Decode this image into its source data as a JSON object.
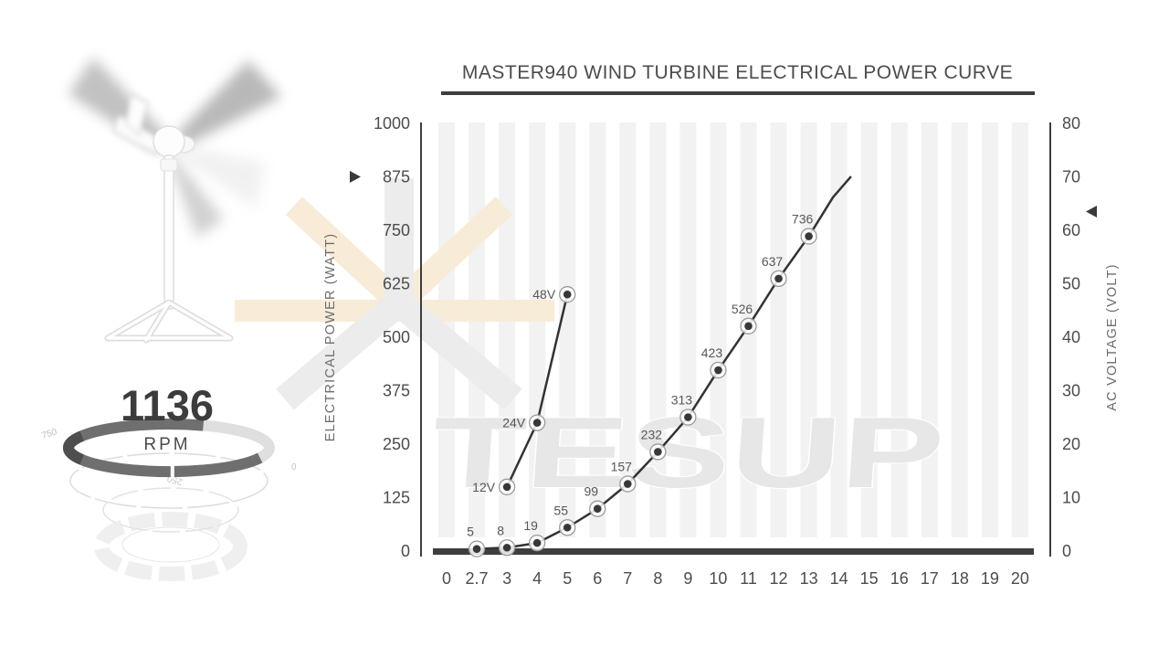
{
  "title": "MASTER940 WIND TURBINE ELECTRICAL POWER CURVE",
  "watermark": {
    "text": "TESUP"
  },
  "gauge": {
    "value": "1136",
    "unit": "RPM",
    "scale_labels": [
      "750",
      "250",
      "0"
    ]
  },
  "colors": {
    "axis": "#3e3e3e",
    "tick_text": "#4c4c4c",
    "axis_title_text": "#6d6d6d",
    "line": "#333333",
    "marker_dot": "#383838",
    "marker_ring": "#9a9a9a",
    "point_label": "#575757",
    "stripe": "#f2f2f2",
    "pointer": "#3a3a3a"
  },
  "chart_data": {
    "type": "line",
    "title": "MASTER940 WIND TURBINE ELECTRICAL POWER CURVE",
    "x_categories": [
      "0",
      "2.7",
      "3",
      "4",
      "5",
      "6",
      "7",
      "8",
      "9",
      "10",
      "11",
      "12",
      "13",
      "14",
      "15",
      "16",
      "17",
      "18",
      "19",
      "20"
    ],
    "grid": "vertical-stripes",
    "legend": "none",
    "left_axis": {
      "label": "ELECTRICAL POWER (WATT)",
      "ticks": [
        0,
        125,
        250,
        375,
        500,
        625,
        750,
        875,
        1000
      ],
      "range": [
        0,
        1000
      ],
      "pointer_value": 875
    },
    "right_axis": {
      "label": "AC VOLTAGE (VOLT)",
      "ticks": [
        0,
        10,
        20,
        30,
        40,
        50,
        60,
        70,
        80
      ],
      "range": [
        0,
        80
      ],
      "pointer_value": 63.5
    },
    "series": [
      {
        "name": "electrical-power",
        "axis": "left",
        "x": [
          "2.7",
          "3",
          "4",
          "5",
          "6",
          "7",
          "8",
          "9",
          "10",
          "11",
          "12",
          "13"
        ],
        "values": [
          5,
          8,
          19,
          55,
          99,
          157,
          232,
          313,
          423,
          526,
          637,
          736
        ],
        "point_labels": [
          "5",
          "8",
          "19",
          "55",
          "99",
          "157",
          "232",
          "313",
          "423",
          "526",
          "637",
          "736"
        ],
        "tail": [
          {
            "wind_speed": 13.8,
            "value": 827
          },
          {
            "wind_speed": 14.4,
            "value": 876
          }
        ]
      },
      {
        "name": "ac-voltage",
        "axis": "right",
        "x": [
          "3",
          "4",
          "5"
        ],
        "values": [
          12,
          24,
          48
        ],
        "point_labels": [
          "12V",
          "24V",
          "48V"
        ]
      }
    ]
  }
}
